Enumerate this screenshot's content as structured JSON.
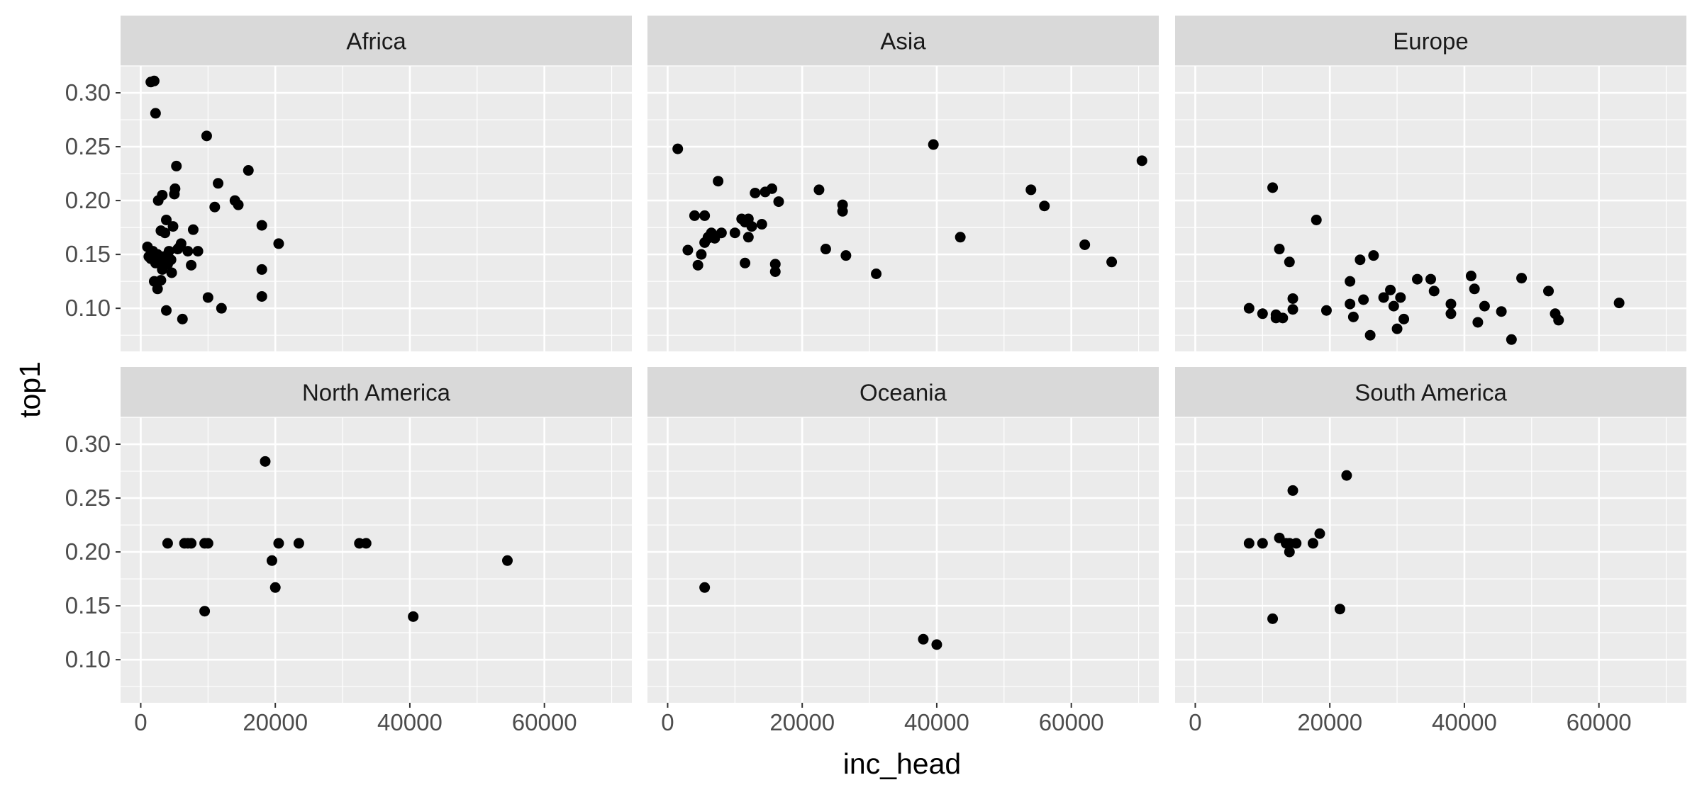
{
  "chart_data": {
    "type": "scatter",
    "layout": "facet-grid-2x3",
    "xlabel": "inc_head",
    "ylabel": "top1",
    "xlim": [
      -3000,
      73000
    ],
    "ylim": [
      0.06,
      0.325
    ],
    "x_ticks": [
      0,
      20000,
      40000,
      60000
    ],
    "x_tick_labels": [
      "0",
      "20000",
      "40000",
      "60000"
    ],
    "y_ticks": [
      0.1,
      0.15,
      0.2,
      0.25,
      0.3
    ],
    "y_tick_labels": [
      "0.10",
      "0.15",
      "0.20",
      "0.25",
      "0.30"
    ],
    "grid": true,
    "point_color": "#000000",
    "panel_background": "#ebebeb",
    "strip_background": "#d9d9d9",
    "panels": [
      {
        "name": "Africa",
        "x": [
          1500,
          2000,
          2200,
          9800,
          5300,
          16000,
          11500,
          2600,
          5100,
          3200,
          5000,
          14000,
          14500,
          11000,
          18000,
          3800,
          3000,
          4800,
          7800,
          20500,
          1000,
          1800,
          2500,
          4200,
          6000,
          8500,
          5500,
          3500,
          2000,
          1200,
          2800,
          4500,
          7000,
          18000,
          3300,
          2200,
          4600,
          10000,
          7500,
          18000,
          2000,
          3000,
          12000,
          3800,
          6200,
          1500,
          2500,
          3200,
          4000,
          5800,
          2600,
          3600
        ],
        "y": [
          0.31,
          0.311,
          0.281,
          0.26,
          0.232,
          0.228,
          0.216,
          0.2,
          0.211,
          0.205,
          0.206,
          0.2,
          0.196,
          0.194,
          0.177,
          0.182,
          0.172,
          0.176,
          0.173,
          0.16,
          0.157,
          0.153,
          0.15,
          0.153,
          0.16,
          0.153,
          0.155,
          0.148,
          0.145,
          0.148,
          0.142,
          0.145,
          0.153,
          0.136,
          0.14,
          0.142,
          0.133,
          0.11,
          0.14,
          0.111,
          0.125,
          0.126,
          0.1,
          0.098,
          0.09,
          0.146,
          0.118,
          0.136,
          0.141,
          0.157,
          0.145,
          0.17
        ]
      },
      {
        "name": "Asia",
        "x": [
          1500,
          3000,
          4000,
          4500,
          5000,
          5500,
          6000,
          6500,
          7000,
          7500,
          8000,
          10000,
          11000,
          11500,
          12000,
          12500,
          13000,
          14000,
          14500,
          15500,
          16000,
          16500,
          12000,
          5500,
          16000,
          22500,
          23500,
          26000,
          26000,
          26500,
          31000,
          39500,
          43500,
          54000,
          56000,
          62000,
          66000,
          70500,
          6000,
          11500
        ],
        "y": [
          0.248,
          0.154,
          0.186,
          0.14,
          0.15,
          0.186,
          0.165,
          0.17,
          0.165,
          0.218,
          0.17,
          0.17,
          0.183,
          0.142,
          0.183,
          0.176,
          0.207,
          0.178,
          0.208,
          0.211,
          0.141,
          0.199,
          0.166,
          0.161,
          0.134,
          0.21,
          0.155,
          0.196,
          0.19,
          0.149,
          0.132,
          0.252,
          0.166,
          0.21,
          0.195,
          0.159,
          0.143,
          0.237,
          0.166,
          0.18
        ]
      },
      {
        "name": "Europe",
        "x": [
          8000,
          10000,
          11500,
          12000,
          12500,
          13000,
          14000,
          14500,
          14500,
          18000,
          19500,
          23000,
          23500,
          23000,
          24500,
          26000,
          26500,
          28000,
          29000,
          29500,
          30000,
          30500,
          31000,
          33000,
          35000,
          35500,
          38000,
          38000,
          41000,
          42000,
          43000,
          45500,
          47000,
          48500,
          52500,
          53500,
          54000,
          63000,
          12000,
          25000,
          41500
        ],
        "y": [
          0.1,
          0.095,
          0.212,
          0.091,
          0.155,
          0.091,
          0.143,
          0.109,
          0.099,
          0.182,
          0.098,
          0.104,
          0.092,
          0.125,
          0.145,
          0.075,
          0.149,
          0.11,
          0.117,
          0.102,
          0.081,
          0.11,
          0.09,
          0.127,
          0.127,
          0.116,
          0.104,
          0.095,
          0.13,
          0.087,
          0.102,
          0.097,
          0.071,
          0.128,
          0.116,
          0.095,
          0.089,
          0.105,
          0.094,
          0.108,
          0.118
        ]
      },
      {
        "name": "North America",
        "x": [
          4000,
          6500,
          7000,
          7500,
          9500,
          10000,
          18500,
          19500,
          20000,
          20500,
          23500,
          32500,
          33500,
          40500,
          54500,
          9500
        ],
        "y": [
          0.208,
          0.208,
          0.208,
          0.208,
          0.208,
          0.208,
          0.284,
          0.192,
          0.167,
          0.208,
          0.208,
          0.208,
          0.208,
          0.14,
          0.192,
          0.145
        ]
      },
      {
        "name": "Oceania",
        "x": [
          5500,
          38000,
          40000
        ],
        "y": [
          0.167,
          0.119,
          0.114
        ]
      },
      {
        "name": "South America",
        "x": [
          8000,
          10000,
          11500,
          12500,
          13500,
          14000,
          14500,
          15000,
          17500,
          18500,
          21500,
          22500,
          14000
        ],
        "y": [
          0.208,
          0.208,
          0.138,
          0.213,
          0.208,
          0.2,
          0.257,
          0.208,
          0.208,
          0.217,
          0.147,
          0.271,
          0.208
        ]
      }
    ]
  }
}
